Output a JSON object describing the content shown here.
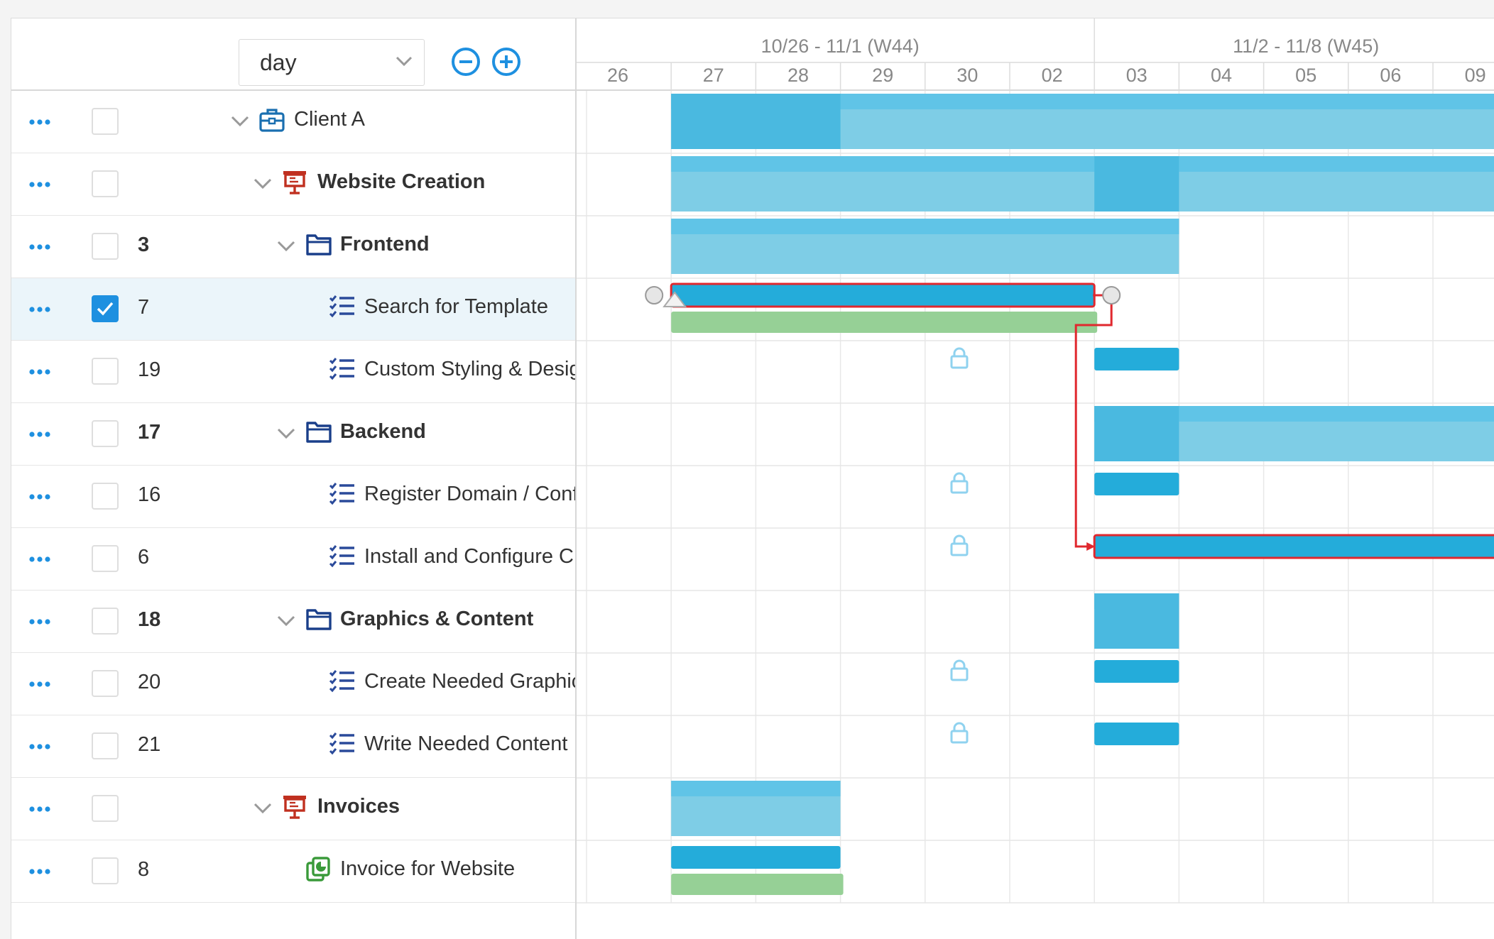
{
  "toolbar": {
    "zoom_level": "day",
    "zoom_out_icon": "minus-circle-icon",
    "zoom_in_icon": "plus-circle-icon"
  },
  "timeline": {
    "weeks": [
      "10/26 - 11/1 (W44)",
      "11/2 - 11/8 (W45)"
    ],
    "days": [
      "26",
      "27",
      "28",
      "29",
      "30",
      "02",
      "03",
      "04",
      "05",
      "06",
      "09"
    ]
  },
  "rows": [
    {
      "id": "client-a",
      "num": "",
      "label": "Client A",
      "icon": "briefcase-icon",
      "level": 0,
      "expandable": true,
      "bold": false,
      "checked": false
    },
    {
      "id": "website-creation",
      "num": "",
      "label": "Website Creation",
      "icon": "presentation-icon",
      "level": 1,
      "expandable": true,
      "bold": true,
      "checked": false
    },
    {
      "id": "frontend",
      "num": "3",
      "label": "Frontend",
      "icon": "folder-icon",
      "level": 2,
      "expandable": true,
      "bold": true,
      "checked": false
    },
    {
      "id": "search-template",
      "num": "7",
      "label": "Search for Template",
      "icon": "checklist-icon",
      "level": 3,
      "expandable": false,
      "bold": false,
      "checked": true
    },
    {
      "id": "custom-styling",
      "num": "19",
      "label": "Custom Styling & Design",
      "icon": "checklist-icon",
      "level": 3,
      "expandable": false,
      "bold": false,
      "checked": false
    },
    {
      "id": "backend",
      "num": "17",
      "label": "Backend",
      "icon": "folder-icon",
      "level": 2,
      "expandable": true,
      "bold": true,
      "checked": false
    },
    {
      "id": "register-domain",
      "num": "16",
      "label": "Register Domain / Configure Hosting",
      "icon": "checklist-icon",
      "level": 3,
      "expandable": false,
      "bold": false,
      "checked": false
    },
    {
      "id": "install-cms",
      "num": "6",
      "label": "Install and Configure CMS",
      "icon": "checklist-icon",
      "level": 3,
      "expandable": false,
      "bold": false,
      "checked": false
    },
    {
      "id": "graphics-content",
      "num": "18",
      "label": "Graphics & Content",
      "icon": "folder-icon",
      "level": 2,
      "expandable": true,
      "bold": true,
      "checked": false
    },
    {
      "id": "create-graphics",
      "num": "20",
      "label": "Create Needed Graphics",
      "icon": "checklist-icon",
      "level": 3,
      "expandable": false,
      "bold": false,
      "checked": false
    },
    {
      "id": "write-content",
      "num": "21",
      "label": "Write Needed Content",
      "icon": "checklist-icon",
      "level": 3,
      "expandable": false,
      "bold": false,
      "checked": false
    },
    {
      "id": "invoices",
      "num": "",
      "label": "Invoices",
      "icon": "presentation-icon",
      "level": 1,
      "expandable": true,
      "bold": true,
      "checked": false
    },
    {
      "id": "invoice-website",
      "num": "8",
      "label": "Invoice for Website",
      "icon": "invoice-icon",
      "level": 2,
      "expandable": false,
      "bold": false,
      "checked": false
    }
  ],
  "colors": {
    "accent": "#1e90e0",
    "task_bar": "#24acda",
    "summary_light": "#7ecde6",
    "summary_mid": "#4ab9e0",
    "summary_top": "#5bc2e6",
    "baseline": "#96d096",
    "critical": "#e0282e",
    "lock": "#8fd2ef",
    "grid_line": "#e8e8e8"
  }
}
